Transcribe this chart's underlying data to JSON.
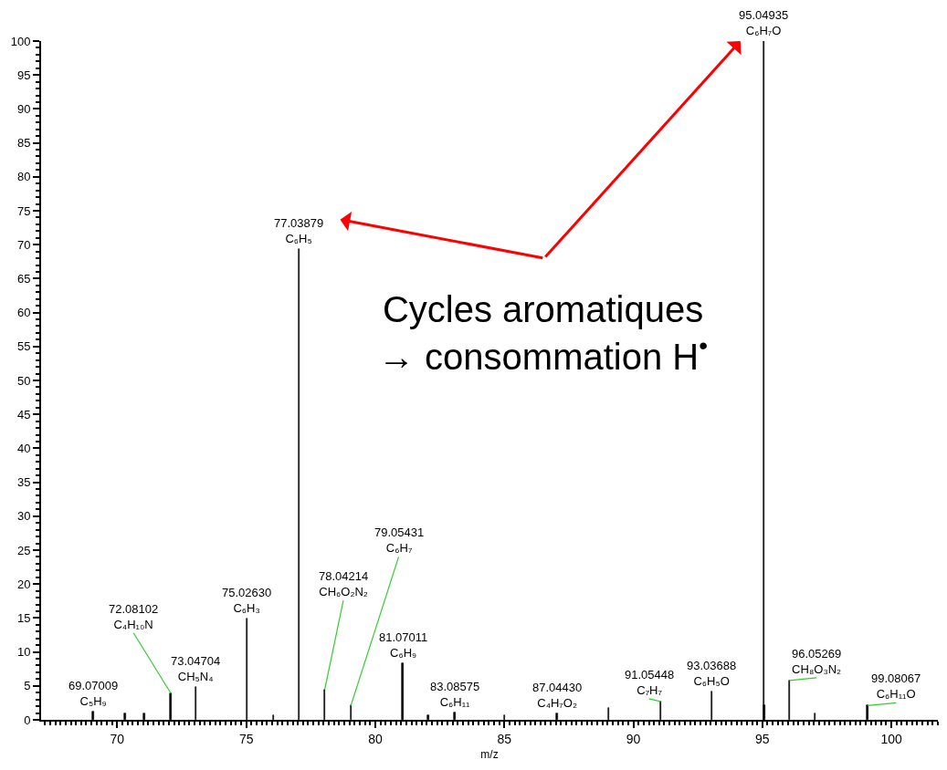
{
  "chart_data": {
    "type": "bar",
    "xlabel": "m/z",
    "color": "#000000",
    "x": [
      69.07009,
      70.3,
      71.05,
      72.08102,
      73.04704,
      75.0263,
      76.05,
      77.03879,
      78.04214,
      79.05431,
      81.07011,
      82.05,
      83.08575,
      85.0,
      87.0443,
      89.05,
      91.05448,
      93.03688,
      95.04935,
      95.07,
      96.05269,
      97.05,
      99.08067
    ],
    "values": [
      1.2,
      0.9,
      0.9,
      3.9,
      4.8,
      14.9,
      0.7,
      69.4,
      4.5,
      2.1,
      8.3,
      0.7,
      1.1,
      0.7,
      1.0,
      1.7,
      2.7,
      4.2,
      100,
      2.1,
      5.8,
      0.9,
      2.1
    ],
    "xlim": [
      67.05,
      101.8
    ],
    "ylim": [
      0,
      100
    ],
    "xticks": [
      70,
      75,
      80,
      85,
      90,
      95,
      100
    ],
    "yticks": [
      0,
      5,
      10,
      15,
      20,
      25,
      30,
      35,
      40,
      45,
      50,
      55,
      60,
      65,
      70,
      75,
      80,
      85,
      90,
      95,
      100
    ],
    "annotations": [
      {
        "text": "69.07009\nC₅H₉",
        "x": 69.07009,
        "y": 1.2
      },
      {
        "text": "72.08102\nC₄H₁₀N",
        "x": 72.08102,
        "y": 3.9
      },
      {
        "text": "73.04704\nCH₅N₄",
        "x": 73.04704,
        "y": 4.8
      },
      {
        "text": "75.02630\nC₆H₃",
        "x": 75.0263,
        "y": 14.9
      },
      {
        "text": "77.03879\nC₆H₅",
        "x": 77.03879,
        "y": 69.4
      },
      {
        "text": "78.04214\nCH₆O₂N₂",
        "x": 78.04214,
        "y": 4.5
      },
      {
        "text": "79.05431\nC₆H₇",
        "x": 79.05431,
        "y": 2.1
      },
      {
        "text": "81.07011\nC₆H₉",
        "x": 81.07011,
        "y": 8.3
      },
      {
        "text": "83.08575\nC₆H₁₁",
        "x": 83.08575,
        "y": 1.1
      },
      {
        "text": "87.04430\nC₄H₇O₂",
        "x": 87.0443,
        "y": 1.0
      },
      {
        "text": "91.05448\nC₇H₇",
        "x": 91.05448,
        "y": 2.7
      },
      {
        "text": "93.03688\nC₆H₅O",
        "x": 93.03688,
        "y": 4.2
      },
      {
        "text": "95.04935\nC₆H₇O",
        "x": 95.04935,
        "y": 100
      },
      {
        "text": "96.05269\nCH₈O₃N₂",
        "x": 96.05269,
        "y": 5.8
      },
      {
        "text": "99.08067\nC₆H₁₁O",
        "x": 99.08067,
        "y": 2.1
      },
      "Cycles aromatiques\n→ consommation H$^{•}$"
    ]
  }
}
